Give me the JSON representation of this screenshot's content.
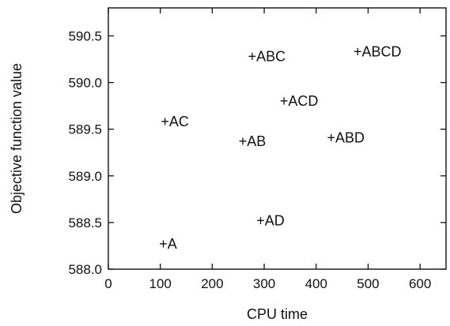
{
  "chart_data": {
    "type": "scatter",
    "title": "",
    "xlabel": "CPU time",
    "ylabel": "Objective function value",
    "xlim": [
      0,
      650
    ],
    "ylim": [
      588.0,
      590.8
    ],
    "xticks": [
      0,
      100,
      200,
      300,
      400,
      500,
      600
    ],
    "yticks": [
      588.0,
      588.5,
      589.0,
      589.5,
      590.0,
      590.5
    ],
    "xtick_labels": [
      "0",
      "100",
      "200",
      "300",
      "400",
      "500",
      "600"
    ],
    "ytick_labels": [
      "588.0",
      "588.5",
      "589.0",
      "589.5",
      "590.0",
      "590.5"
    ],
    "marker": "+",
    "grid": false,
    "points": [
      {
        "label": "A",
        "x": 115,
        "y": 588.27
      },
      {
        "label": "AC",
        "x": 128,
        "y": 589.58
      },
      {
        "label": "AB",
        "x": 277,
        "y": 589.37
      },
      {
        "label": "AD",
        "x": 312,
        "y": 588.52
      },
      {
        "label": "ABC",
        "x": 305,
        "y": 590.28
      },
      {
        "label": "ACD",
        "x": 367,
        "y": 589.8
      },
      {
        "label": "ABD",
        "x": 457,
        "y": 589.41
      },
      {
        "label": "ABCD",
        "x": 518,
        "y": 590.33
      }
    ]
  }
}
